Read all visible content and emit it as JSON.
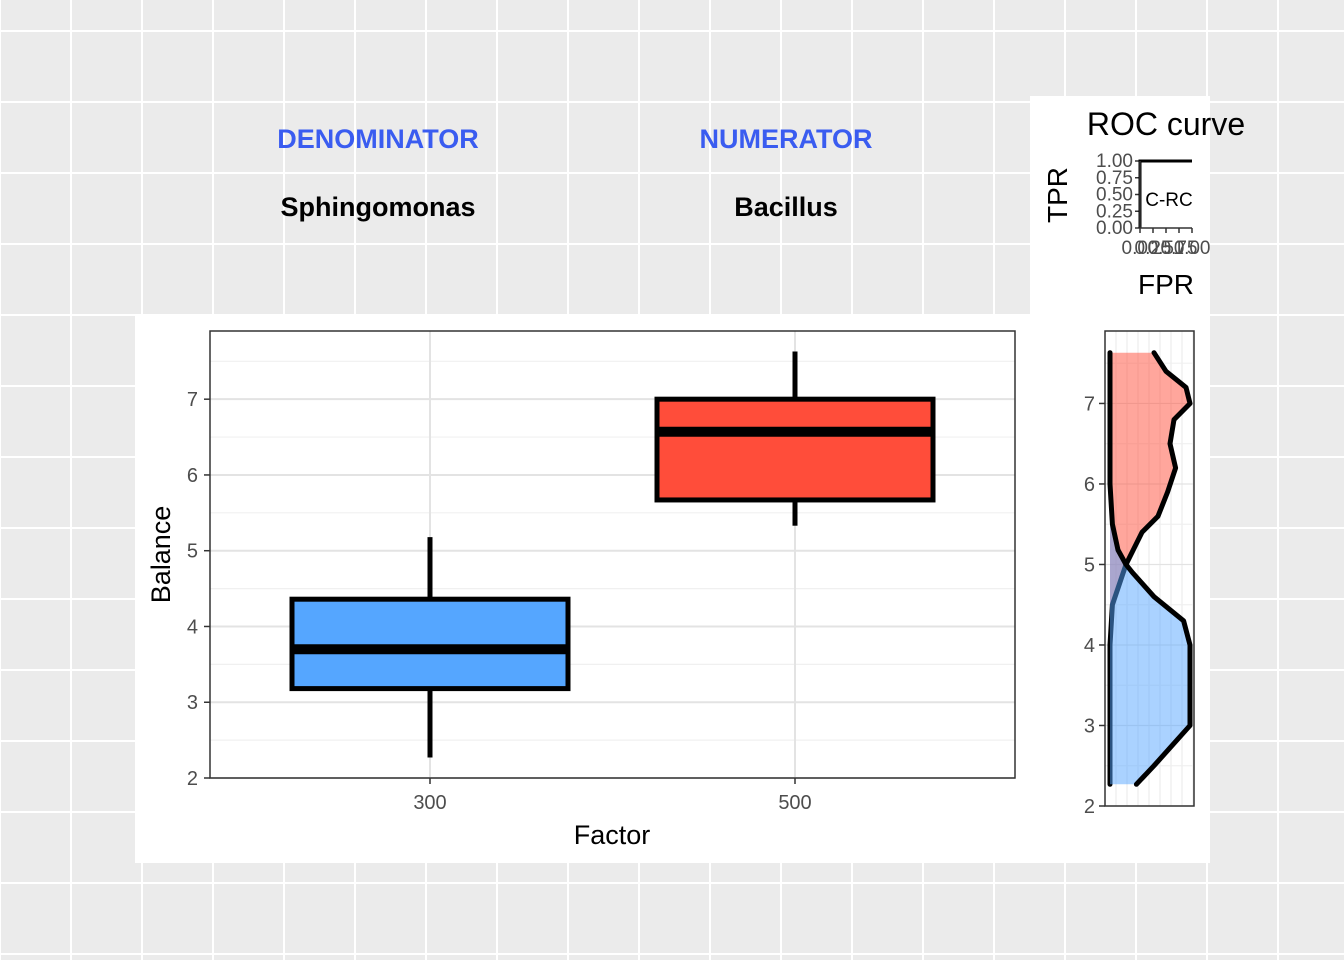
{
  "header": {
    "left_role": "DENOMINATOR",
    "left_taxon": "Sphingomonas",
    "right_role": "NUMERATOR",
    "right_taxon": "Bacillus"
  },
  "colors": {
    "denominator": "#55a6ff",
    "numerator": "#ff4d3a",
    "header_accent": "#3a5cf0"
  },
  "chart_data": [
    {
      "type": "box",
      "xlabel": "Factor",
      "ylabel": "Balance",
      "ylim": [
        2,
        7.9
      ],
      "yticks": [
        2,
        3,
        4,
        5,
        6,
        7
      ],
      "categories": [
        "300",
        "500"
      ],
      "boxes": [
        {
          "category": "300",
          "min": 2.27,
          "q1": 3.18,
          "median": 3.7,
          "q3": 4.36,
          "max": 5.18,
          "color": "#55a6ff"
        },
        {
          "category": "500",
          "min": 5.33,
          "q1": 5.67,
          "median": 6.57,
          "q3": 7.0,
          "max": 7.63,
          "color": "#ff4d3a"
        }
      ],
      "grid": true
    },
    {
      "type": "line",
      "title": "ROC curve",
      "xlabel": "FPR",
      "ylabel": "TPR",
      "xlim": [
        0,
        1
      ],
      "ylim": [
        0,
        1
      ],
      "yticks": [
        "0.00",
        "0.25",
        "0.50",
        "0.75",
        "1.00"
      ],
      "xticks": [
        "0.00",
        "0.25",
        "0.50",
        "0.75",
        "1.00"
      ],
      "annotation": "C-RC",
      "series": [
        {
          "x": [
            0,
            0,
            1
          ],
          "y": [
            0,
            1,
            1
          ]
        }
      ]
    },
    {
      "type": "area",
      "orientation": "vertical",
      "ylim": [
        2,
        7.9
      ],
      "yticks": [
        2,
        3,
        4,
        5,
        6,
        7
      ],
      "series": [
        {
          "color": "#ff4d3a",
          "y": [
            2.27,
            3.0,
            4.0,
            4.5,
            5.0,
            5.4,
            5.6,
            5.9,
            6.2,
            6.5,
            6.8,
            7.0,
            7.2,
            7.4,
            7.63
          ],
          "density": [
            0.0,
            0.0,
            0.0,
            0.03,
            0.2,
            0.4,
            0.6,
            0.72,
            0.82,
            0.75,
            0.8,
            1.0,
            0.95,
            0.7,
            0.55
          ]
        },
        {
          "color": "#55a6ff",
          "y": [
            2.27,
            2.5,
            3.0,
            3.5,
            4.0,
            4.3,
            4.6,
            4.9,
            5.0,
            5.18,
            5.5,
            6.0,
            7.0,
            7.63
          ],
          "density": [
            0.33,
            0.55,
            1.0,
            1.0,
            1.0,
            0.92,
            0.55,
            0.28,
            0.2,
            0.1,
            0.03,
            0.0,
            0.0,
            0.0
          ]
        }
      ]
    }
  ]
}
